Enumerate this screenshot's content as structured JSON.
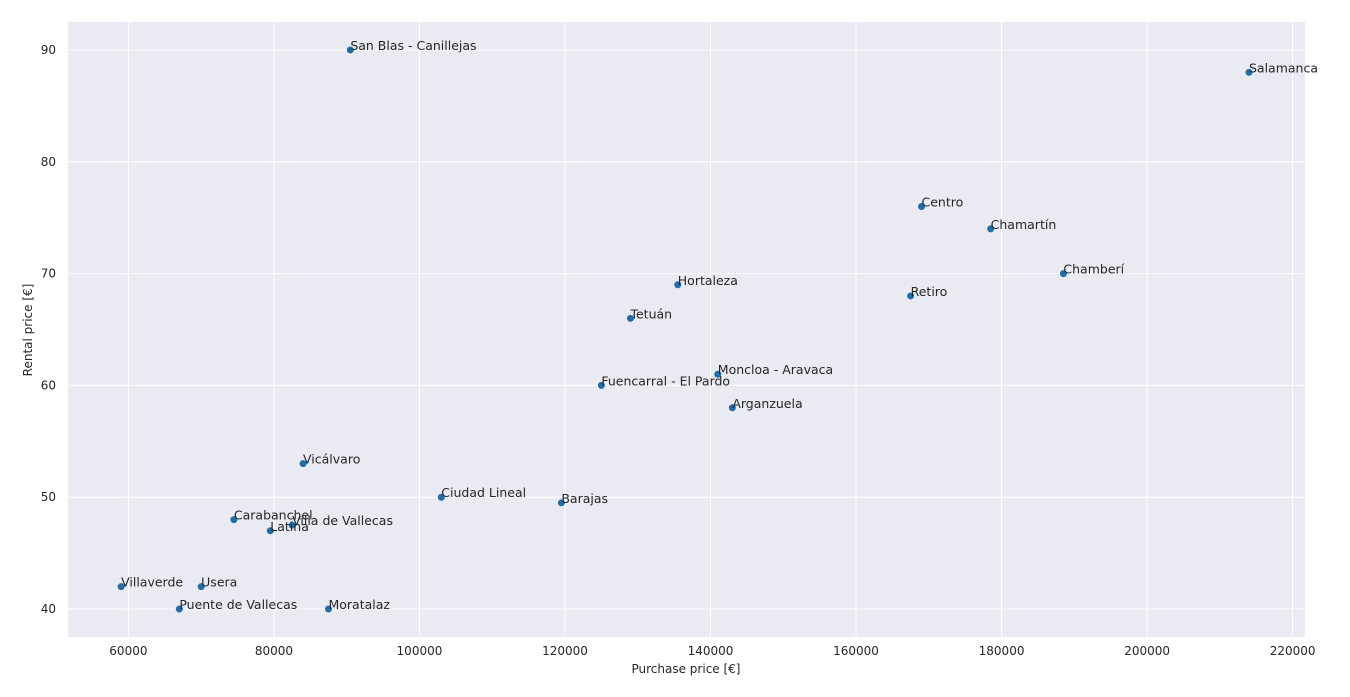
{
  "chart_data": {
    "type": "scatter",
    "title": "",
    "xlabel": "Purchase price [€]",
    "ylabel": "Rental price [€]",
    "xlim": [
      51700,
      221700
    ],
    "ylim": [
      37.5,
      92.5
    ],
    "xticks": [
      60000,
      80000,
      100000,
      120000,
      140000,
      160000,
      180000,
      200000,
      220000
    ],
    "yticks": [
      40,
      50,
      60,
      70,
      80,
      90
    ],
    "grid": true,
    "legend": "none",
    "colors": {
      "point": "#1f6ea8",
      "background": "#eaeaf2",
      "grid": "#ffffff"
    },
    "points": [
      {
        "label": "San Blas - Canillejas",
        "x": 90500,
        "y": 90
      },
      {
        "label": "Salamanca",
        "x": 214000,
        "y": 88
      },
      {
        "label": "Centro",
        "x": 169000,
        "y": 76
      },
      {
        "label": "Chamartín",
        "x": 178500,
        "y": 74
      },
      {
        "label": "Chamberí",
        "x": 188500,
        "y": 70
      },
      {
        "label": "Hortaleza",
        "x": 135500,
        "y": 69
      },
      {
        "label": "Retiro",
        "x": 167500,
        "y": 68
      },
      {
        "label": "Tetuán",
        "x": 129000,
        "y": 66
      },
      {
        "label": "Moncloa - Aravaca",
        "x": 141000,
        "y": 61
      },
      {
        "label": "Fuencarral - El Pardo",
        "x": 125000,
        "y": 60
      },
      {
        "label": "Arganzuela",
        "x": 143000,
        "y": 58
      },
      {
        "label": "Vicálvaro",
        "x": 84000,
        "y": 53
      },
      {
        "label": "Ciudad Lineal",
        "x": 103000,
        "y": 50
      },
      {
        "label": "Barajas",
        "x": 119500,
        "y": 49.5
      },
      {
        "label": "Carabanchel",
        "x": 74500,
        "y": 48
      },
      {
        "label": "Villa de Vallecas",
        "x": 82500,
        "y": 47.5
      },
      {
        "label": "Latina",
        "x": 79500,
        "y": 47
      },
      {
        "label": "Villaverde",
        "x": 59000,
        "y": 42
      },
      {
        "label": "Usera",
        "x": 70000,
        "y": 42
      },
      {
        "label": "Puente de Vallecas",
        "x": 67000,
        "y": 40
      },
      {
        "label": "Moratalaz",
        "x": 87500,
        "y": 40
      }
    ]
  }
}
